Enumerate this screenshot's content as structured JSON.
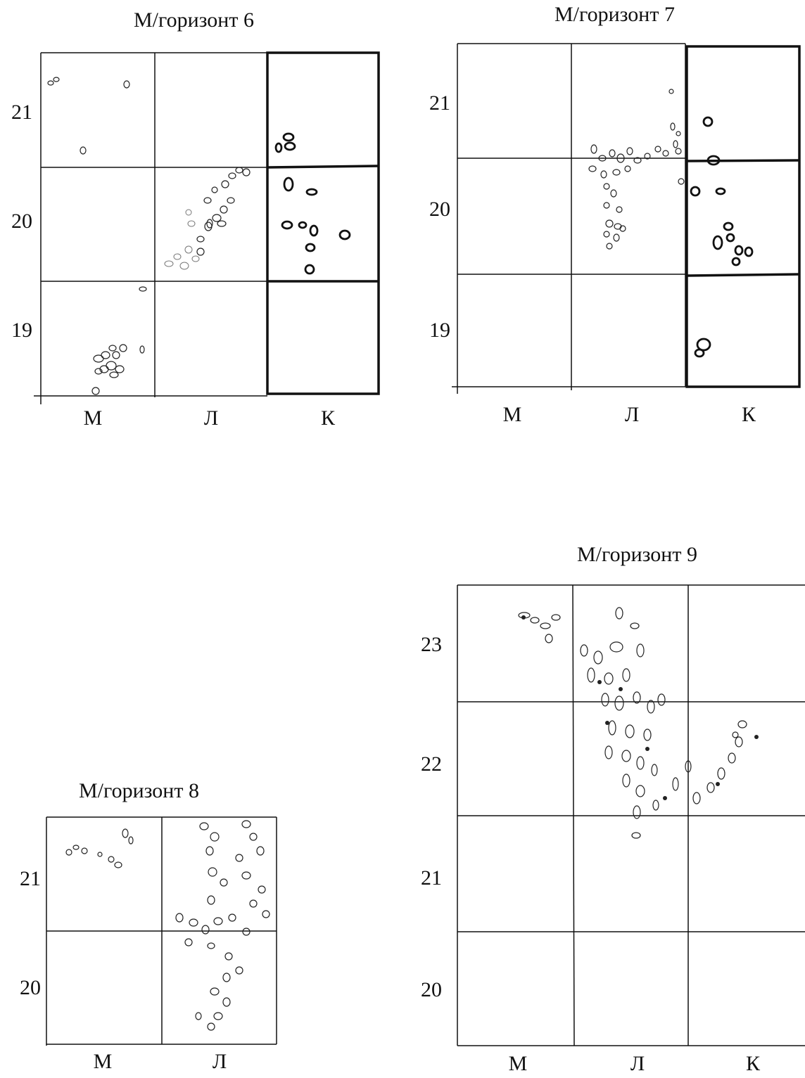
{
  "plans": [
    {
      "id": "h6",
      "title": "М/горизонт 6",
      "rows": [
        "21",
        "20",
        "19"
      ],
      "cols": [
        "М",
        "Л",
        "К"
      ]
    },
    {
      "id": "h7",
      "title": "М/горизонт 7",
      "rows": [
        "21",
        "20",
        "19"
      ],
      "cols": [
        "М",
        "Л",
        "К"
      ]
    },
    {
      "id": "h8",
      "title": "М/горизонт 8",
      "rows": [
        "21",
        "20"
      ],
      "cols": [
        "М",
        "Л"
      ]
    },
    {
      "id": "h9",
      "title": "М/горизонт 9",
      "rows": [
        "23",
        "22",
        "21",
        "20"
      ],
      "cols": [
        "М",
        "Л",
        "К"
      ]
    }
  ]
}
